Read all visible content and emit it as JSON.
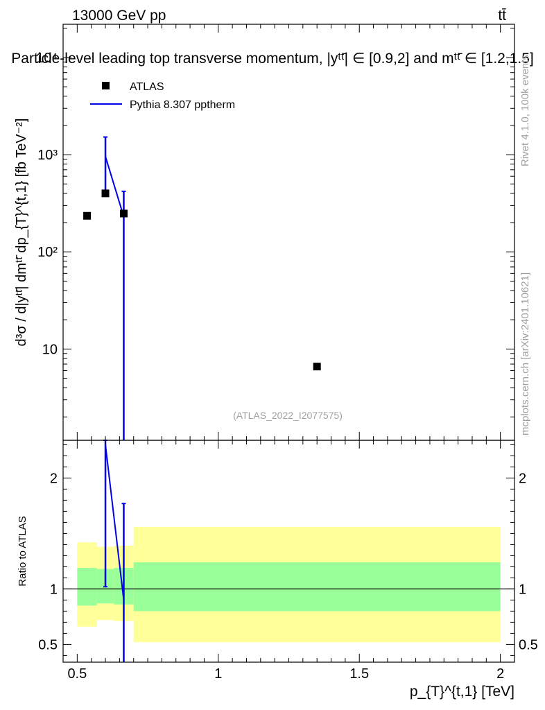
{
  "header": {
    "energy_label": "13000 GeV pp",
    "process_label": "tt̄",
    "plot_title": "Particle-level leading top transverse momentum, |yᵗᵗ̄| ∈ [0.9,2] and mᵗᵗ̄ ∈ [1.2,1.5]",
    "analysis_id": "(ATLAS_2022_I2077575)"
  },
  "side_labels": {
    "rivet": "Rivet 4.1.0,  100k events",
    "mcplots": "mcplots.cern.ch [arXiv:2401.10621]"
  },
  "legend": {
    "data_label": "ATLAS",
    "mc_label": "Pythia 8.307 pptherm"
  },
  "colors": {
    "data": "#000000",
    "mc": "#0000e6",
    "band_inner": "#99ff99",
    "band_outer": "#ffff99"
  },
  "chart_data": [
    {
      "type": "scatter",
      "panel": "main",
      "title": "Particle-level leading top transverse momentum",
      "xlabel": "p_{T}^{t,1} [TeV]",
      "ylabel": "d³σ / d|yᵗᵗ̄| dmᵗᵗ̄ dp_{T}^{t,1} [fb TeV⁻²]",
      "yscale": "log",
      "xlim": [
        0.45,
        2.05
      ],
      "ylim": [
        1.15,
        22000
      ],
      "y_ticks": [
        {
          "value": 10,
          "label": "10"
        },
        {
          "value": 100,
          "label": "10²"
        },
        {
          "value": 1000,
          "label": "10³"
        },
        {
          "value": 10000,
          "label": "10⁴"
        }
      ],
      "series": [
        {
          "name": "ATLAS",
          "style": "markers",
          "points": [
            {
              "x": 0.535,
              "y": 235
            },
            {
              "x": 0.6,
              "y": 400
            },
            {
              "x": 0.665,
              "y": 248
            },
            {
              "x": 1.35,
              "y": 6.6
            }
          ]
        },
        {
          "name": "Pythia 8.307 pptherm",
          "style": "line",
          "points": [
            {
              "x": 0.6,
              "y": 960,
              "err_lo": 400,
              "err_hi": 1520
            },
            {
              "x": 0.665,
              "y": 230,
              "err_lo": 1.0,
              "err_hi": 420
            }
          ]
        }
      ]
    },
    {
      "type": "line",
      "panel": "ratio",
      "ylabel": "Ratio to ATLAS",
      "xlabel": "p_{T}^{t,1} [TeV]",
      "xlim": [
        0.45,
        2.05
      ],
      "ylim": [
        0.34,
        2.34
      ],
      "x_ticks": [
        {
          "value": 0.5,
          "label": "0.5"
        },
        {
          "value": 1,
          "label": "1"
        },
        {
          "value": 1.5,
          "label": "1.5"
        },
        {
          "value": 2,
          "label": "2"
        }
      ],
      "y_ticks": [
        {
          "value": 0.5,
          "label": "0.5"
        },
        {
          "value": 1,
          "label": "1"
        },
        {
          "value": 2,
          "label": "2"
        }
      ],
      "reference_line": 1,
      "bands": [
        {
          "x0": 0.5,
          "x1": 0.57,
          "inner_lo": 0.85,
          "inner_hi": 1.19,
          "outer_lo": 0.66,
          "outer_hi": 1.42
        },
        {
          "x0": 0.57,
          "x1": 0.63,
          "inner_lo": 0.87,
          "inner_hi": 1.18,
          "outer_lo": 0.72,
          "outer_hi": 1.38
        },
        {
          "x0": 0.63,
          "x1": 0.7,
          "inner_lo": 0.86,
          "inner_hi": 1.19,
          "outer_lo": 0.71,
          "outer_hi": 1.39
        },
        {
          "x0": 0.7,
          "x1": 2.0,
          "inner_lo": 0.8,
          "inner_hi": 1.24,
          "outer_lo": 0.52,
          "outer_hi": 1.56
        }
      ],
      "series": [
        {
          "name": "Pythia 8.307 pptherm",
          "points": [
            {
              "x": 0.6,
              "y": 2.3,
              "err_lo": 1.02,
              "err_hi": 2.34
            },
            {
              "x": 0.665,
              "y": 0.9,
              "err_lo": 0.34,
              "err_hi": 1.77
            }
          ]
        }
      ]
    }
  ]
}
